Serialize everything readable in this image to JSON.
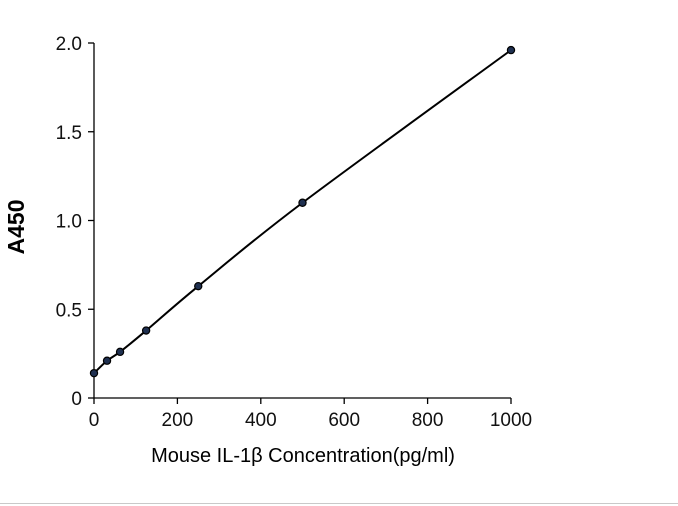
{
  "chart_data": {
    "type": "line",
    "title": "",
    "xlabel": "Mouse IL-1β Concentration(pg/ml)",
    "ylabel": "A450",
    "xlim": [
      0,
      1000
    ],
    "ylim": [
      0,
      2.0
    ],
    "x_ticks": [
      0,
      200,
      400,
      600,
      800,
      1000
    ],
    "x_tick_labels": [
      "0",
      "200",
      "400",
      "600",
      "800",
      "1000"
    ],
    "y_ticks": [
      0,
      0.5,
      1.0,
      1.5,
      2.0
    ],
    "y_tick_labels": [
      "0",
      "0.5",
      "1.0",
      "1.5",
      "2.0"
    ],
    "grid": false,
    "legend": "none",
    "series": [
      {
        "x": [
          0,
          31.25,
          62.5,
          125,
          250,
          500,
          1000
        ],
        "y": [
          0.14,
          0.21,
          0.26,
          0.38,
          0.63,
          1.1,
          1.96
        ],
        "marker_color": "#1f3050",
        "line_color": "#000000"
      }
    ]
  }
}
